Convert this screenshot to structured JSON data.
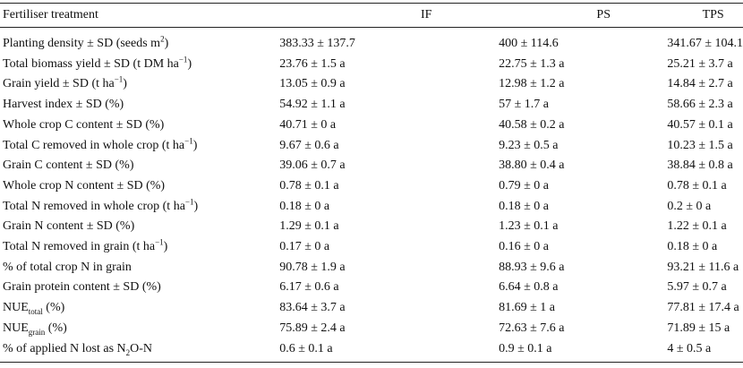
{
  "table": {
    "columns": [
      "Fertiliser treatment",
      "IF",
      "PS",
      "TPS"
    ],
    "rows": [
      {
        "label": [
          "Planting density ± SD (seeds m",
          {
            "sup": "2"
          },
          ")"
        ],
        "values": [
          "383.33 ± 137.7",
          "400 ± 114.6",
          "341.67 ± 104.1"
        ]
      },
      {
        "label": [
          "Total biomass yield ± SD (t DM ha",
          {
            "sup": "−1"
          },
          ")"
        ],
        "values": [
          "23.76 ± 1.5 a",
          "22.75 ± 1.3 a",
          "25.21 ± 3.7 a"
        ]
      },
      {
        "label": [
          "Grain yield ± SD (t ha",
          {
            "sup": "−1"
          },
          ")"
        ],
        "values": [
          "13.05 ± 0.9 a",
          "12.98 ± 1.2 a",
          "14.84 ± 2.7 a"
        ]
      },
      {
        "label": [
          "Harvest index ± SD (%)"
        ],
        "values": [
          "54.92 ± 1.1 a",
          "57 ± 1.7 a",
          "58.66 ± 2.3 a"
        ]
      },
      {
        "label": [
          "Whole crop C content ± SD (%)"
        ],
        "values": [
          "40.71 ± 0 a",
          "40.58 ± 0.2 a",
          "40.57 ± 0.1 a"
        ]
      },
      {
        "label": [
          "Total C removed in whole crop (t ha",
          {
            "sup": "−1"
          },
          ")"
        ],
        "values": [
          "9.67 ± 0.6 a",
          "9.23 ± 0.5 a",
          "10.23 ± 1.5 a"
        ]
      },
      {
        "label": [
          "Grain C content ± SD (%)"
        ],
        "values": [
          "39.06 ± 0.7 a",
          "38.80 ± 0.4 a",
          "38.84 ± 0.8 a"
        ]
      },
      {
        "label": [
          "Whole crop N content ± SD (%)"
        ],
        "values": [
          "0.78 ± 0.1 a",
          "0.79 ± 0 a",
          "0.78 ± 0.1 a"
        ]
      },
      {
        "label": [
          "Total N removed in whole crop (t ha",
          {
            "sup": "−1"
          },
          ")"
        ],
        "values": [
          "0.18 ± 0 a",
          "0.18 ± 0 a",
          "0.2 ± 0 a"
        ]
      },
      {
        "label": [
          "Grain N content ± SD (%)"
        ],
        "values": [
          "1.29 ± 0.1 a",
          "1.23 ± 0.1 a",
          "1.22 ± 0.1 a"
        ]
      },
      {
        "label": [
          "Total N removed in grain (t ha",
          {
            "sup": "−1"
          },
          ")"
        ],
        "values": [
          "0.17 ± 0 a",
          "0.16 ± 0 a",
          "0.18 ± 0 a"
        ]
      },
      {
        "label": [
          "% of total crop N in grain"
        ],
        "values": [
          "90.78 ± 1.9 a",
          "88.93 ± 9.6 a",
          "93.21 ± 11.6 a"
        ]
      },
      {
        "label": [
          "Grain protein content ± SD (%)"
        ],
        "values": [
          "6.17 ± 0.6 a",
          "6.64 ± 0.8 a",
          "5.97 ± 0.7 a"
        ]
      },
      {
        "label": [
          "NUE",
          {
            "sub": "total"
          },
          " (%)"
        ],
        "values": [
          "83.64 ± 3.7 a",
          "81.69 ± 1 a",
          "77.81 ± 17.4 a"
        ]
      },
      {
        "label": [
          "NUE",
          {
            "sub": "grain"
          },
          " (%)"
        ],
        "values": [
          "75.89 ± 2.4 a",
          "72.63 ± 7.6 a",
          "71.89 ± 15 a"
        ]
      },
      {
        "label": [
          "% of applied N lost as N",
          {
            "sub": "2"
          },
          "O-N"
        ],
        "values": [
          "0.6 ± 0.1 a",
          "0.9 ± 0.1 a",
          "4 ± 0.5 a"
        ]
      }
    ]
  }
}
